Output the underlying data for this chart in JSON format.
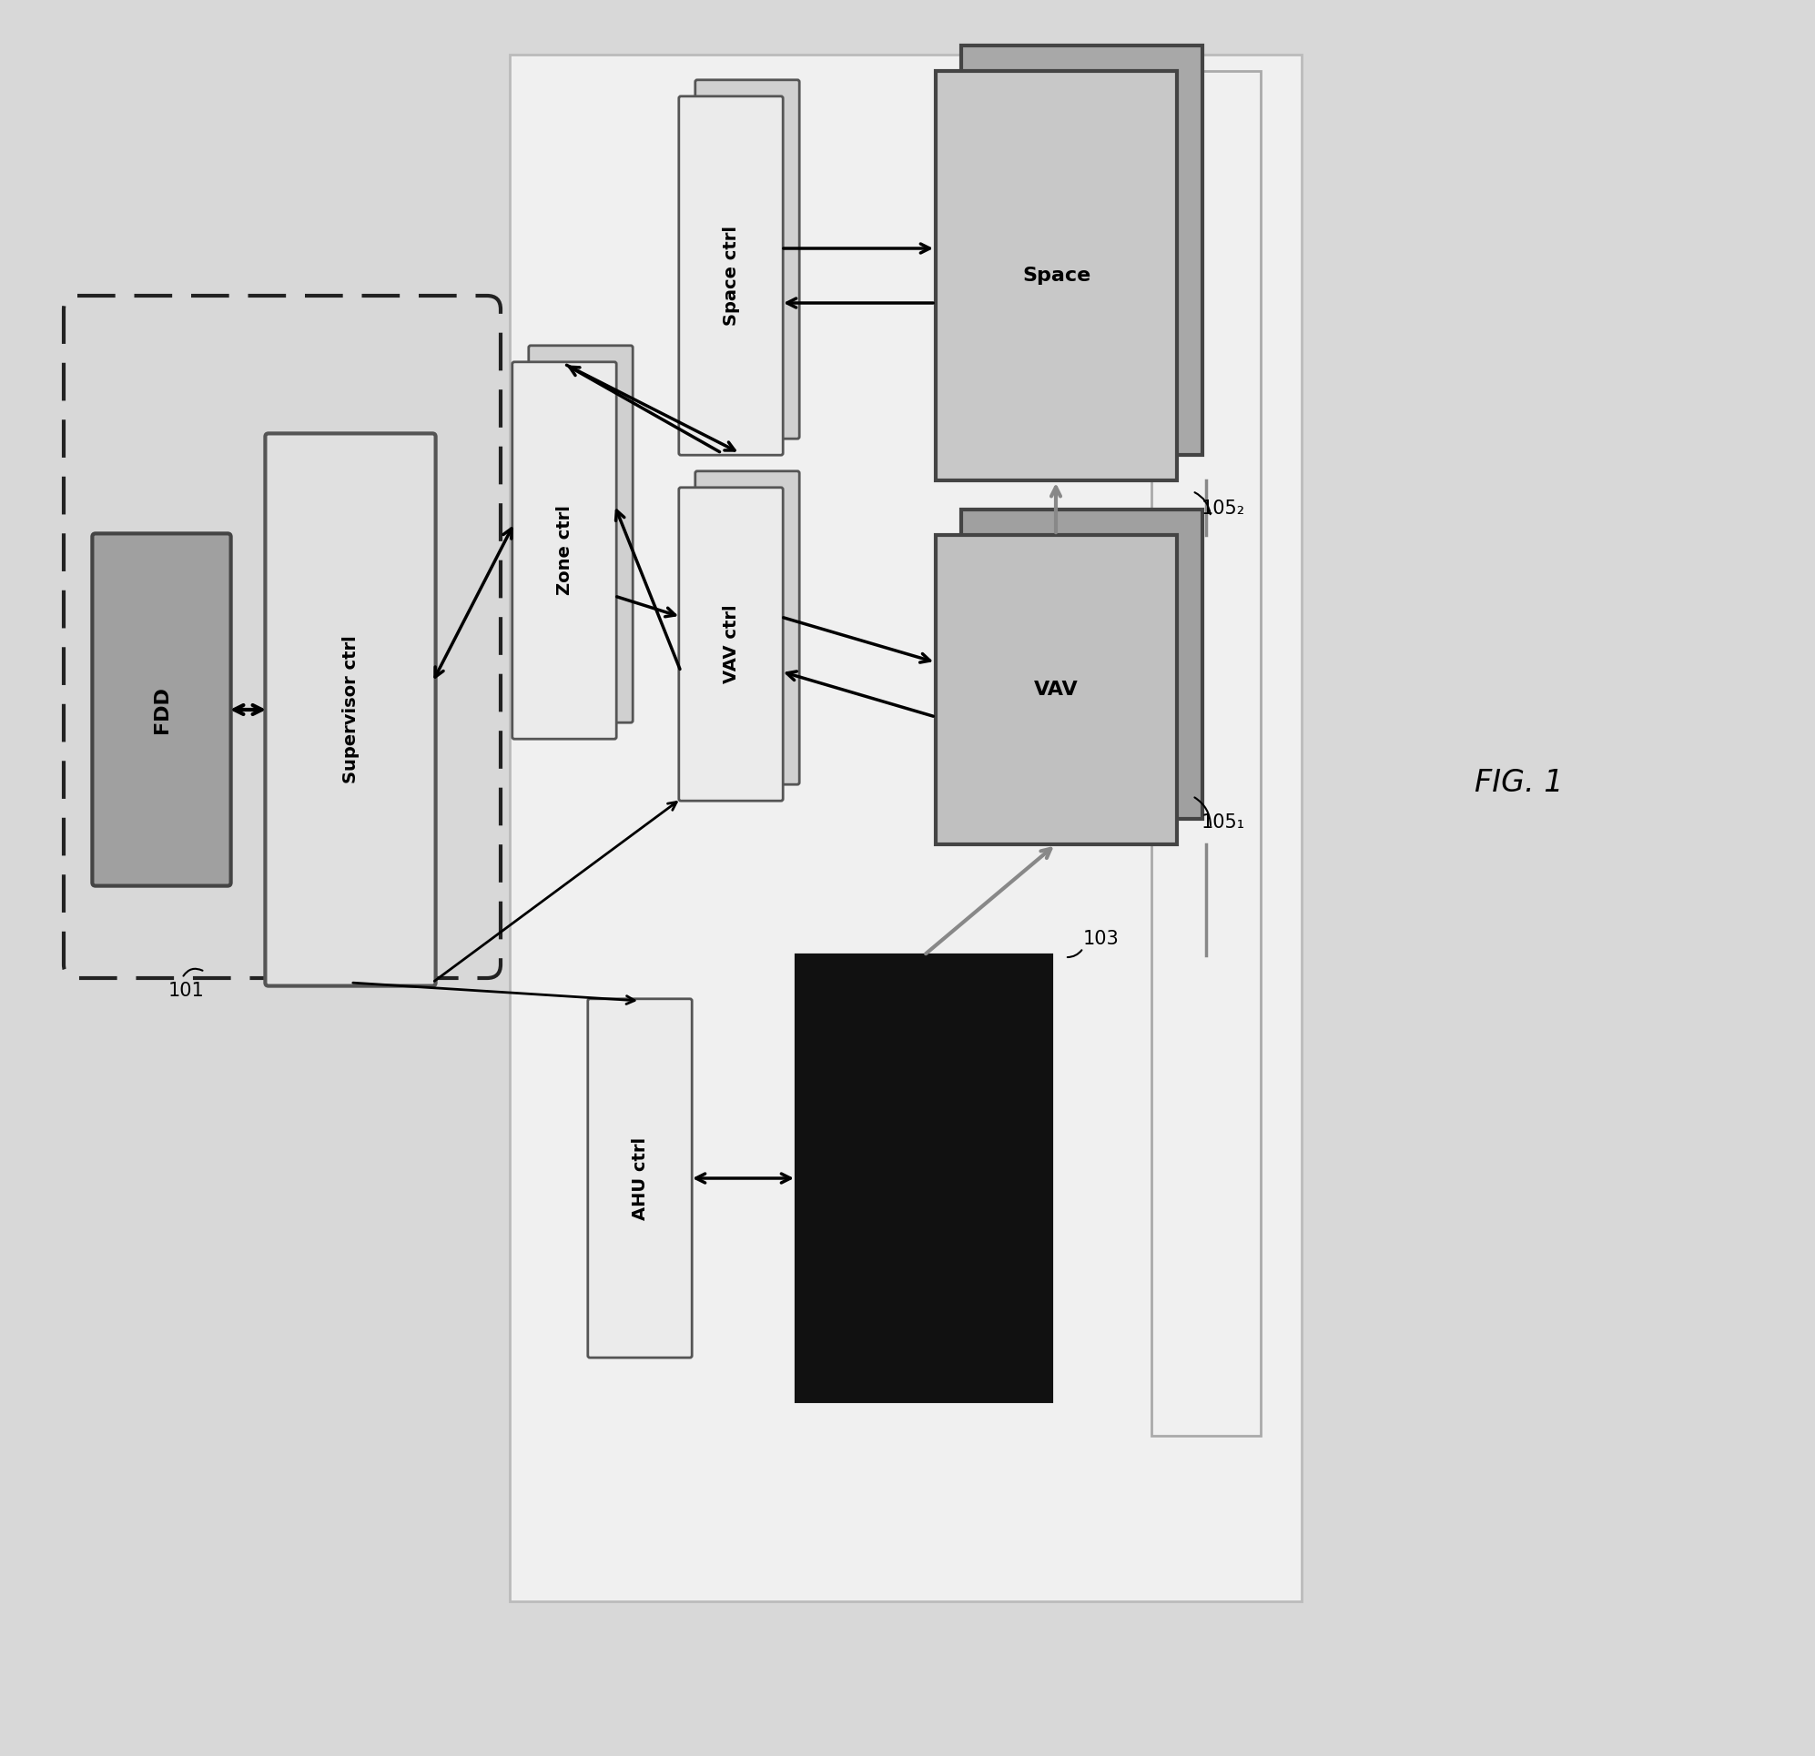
{
  "bg_color": "#d8d8d8",
  "white_bg": "#f5f5f5",
  "fig_label": "FIG. 1",
  "label_101": "101",
  "label_103": "103",
  "label_105_1": "105₁",
  "label_105_2": "105₂",
  "font_size_box": 14,
  "font_size_label": 15,
  "font_size_fig": 24
}
